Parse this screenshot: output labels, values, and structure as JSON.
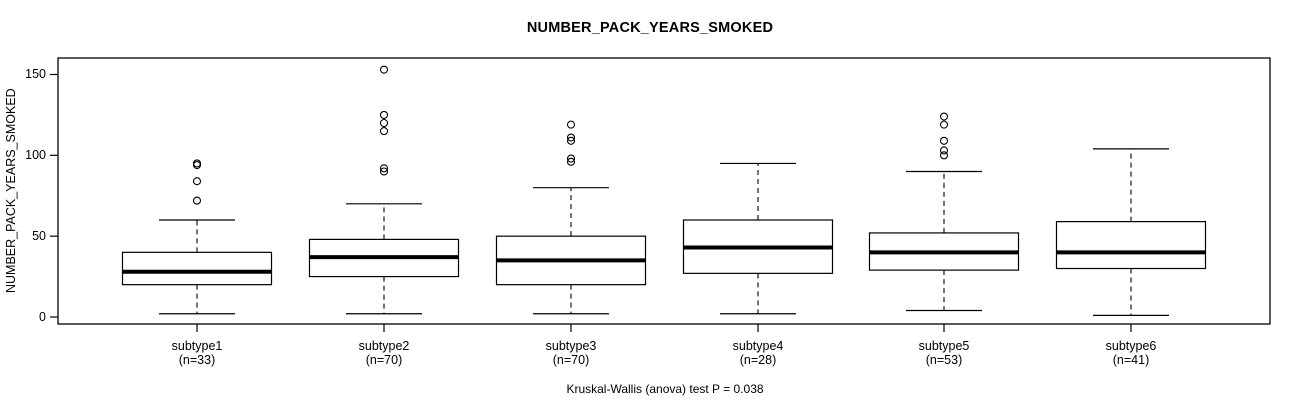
{
  "chart_data": {
    "type": "boxplot",
    "title": "NUMBER_PACK_YEARS_SMOKED",
    "ylabel": "NUMBER_PACK_YEARS_SMOKED",
    "footer": "Kruskal-Wallis (anova) test P = 0.038",
    "yticks": [
      0,
      50,
      100,
      150
    ],
    "ylim": [
      0,
      154
    ],
    "grid": false,
    "box_fill": "#ffffff",
    "line_color": "#000000",
    "groups": [
      {
        "label": "subtype1",
        "n_label": "(n=33)",
        "n": 33,
        "whisker_low": 2,
        "q1": 20,
        "median": 28,
        "q3": 40,
        "whisker_high": 60,
        "outliers": [
          72,
          84,
          94,
          95
        ]
      },
      {
        "label": "subtype2",
        "n_label": "(n=70)",
        "n": 70,
        "whisker_low": 2,
        "q1": 25,
        "median": 37,
        "q3": 48,
        "whisker_high": 70,
        "outliers": [
          90,
          92,
          115,
          120,
          125,
          153
        ]
      },
      {
        "label": "subtype3",
        "n_label": "(n=70)",
        "n": 70,
        "whisker_low": 2,
        "q1": 20,
        "median": 35,
        "q3": 50,
        "whisker_high": 80,
        "outliers": [
          96,
          98,
          109,
          111,
          119
        ]
      },
      {
        "label": "subtype4",
        "n_label": "(n=28)",
        "n": 28,
        "whisker_low": 2,
        "q1": 27,
        "median": 43,
        "q3": 60,
        "whisker_high": 95,
        "outliers": []
      },
      {
        "label": "subtype5",
        "n_label": "(n=53)",
        "n": 53,
        "whisker_low": 4,
        "q1": 29,
        "median": 40,
        "q3": 52,
        "whisker_high": 90,
        "outliers": [
          100,
          103,
          109,
          119,
          124
        ]
      },
      {
        "label": "subtype6",
        "n_label": "(n=41)",
        "n": 41,
        "whisker_low": 1,
        "q1": 30,
        "median": 40,
        "q3": 59,
        "whisker_high": 104,
        "outliers": []
      }
    ]
  }
}
